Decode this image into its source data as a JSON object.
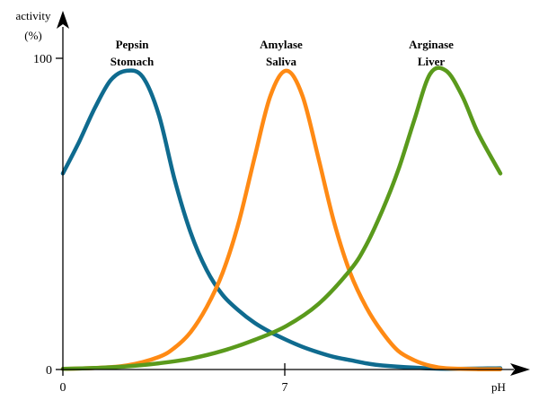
{
  "chart_data": {
    "type": "line",
    "ylabel": [
      "activity",
      "(%)"
    ],
    "xlabel": "pH",
    "xlim": [
      0,
      13.7
    ],
    "ylim": [
      0,
      100
    ],
    "x_ticks": [
      {
        "value": 0,
        "label": "0"
      },
      {
        "value": 7,
        "label": "7"
      }
    ],
    "y_ticks": [
      {
        "value": 0,
        "label": "0"
      },
      {
        "value": 100,
        "label": "100"
      }
    ],
    "grid": false,
    "series": [
      {
        "name": "Pepsin Stomach",
        "label_lines": [
          "Pepsin",
          "Stomach"
        ],
        "color": "#0f6b8f",
        "x": [
          0,
          0.5,
          1.0,
          1.5,
          2.0,
          2.5,
          3.0,
          3.5,
          4.0,
          4.5,
          5.0,
          5.5,
          6.0,
          6.5,
          7.0,
          7.5,
          8.0,
          8.5,
          9.0,
          9.5,
          10.0,
          11.0,
          12.0,
          13.7
        ],
        "y": [
          63,
          73,
          84,
          93,
          96,
          94,
          82,
          61,
          44,
          32,
          24,
          19,
          15,
          12,
          9.5,
          7.3,
          5.5,
          4,
          3,
          2,
          1.3,
          0.6,
          0.2,
          0.4
        ]
      },
      {
        "name": "Amylase Saliva",
        "label_lines": [
          "Amylase",
          "Saliva"
        ],
        "color": "#ff8a14",
        "x": [
          0,
          1.0,
          2.0,
          3.0,
          3.5,
          4.0,
          4.5,
          5.0,
          5.5,
          6.0,
          6.5,
          7.0,
          7.5,
          8.0,
          8.5,
          9.0,
          9.5,
          10.0,
          10.5,
          11.0,
          11.5,
          12.0,
          13.0,
          13.7
        ],
        "y": [
          0.2,
          0.5,
          1.3,
          4,
          7,
          12,
          20,
          31,
          47,
          68,
          88,
          96,
          88,
          68,
          47,
          31,
          20,
          12,
          6,
          3,
          1.2,
          0.4,
          0.1,
          0.1
        ]
      },
      {
        "name": "Arginase Liver",
        "label_lines": [
          "Arginase",
          "Liver"
        ],
        "color": "#5a9a1c",
        "x": [
          0,
          1.0,
          2.0,
          3.0,
          4.0,
          5.0,
          6.0,
          7.0,
          8.0,
          9.0,
          9.5,
          10.0,
          10.5,
          11.0,
          11.5,
          12.0,
          12.5,
          13.0,
          13.7
        ],
        "y": [
          0.2,
          0.5,
          1,
          2,
          3.5,
          6,
          9.5,
          14,
          21,
          32,
          40,
          51,
          64,
          80,
          95,
          96,
          88,
          76,
          63
        ]
      }
    ]
  }
}
